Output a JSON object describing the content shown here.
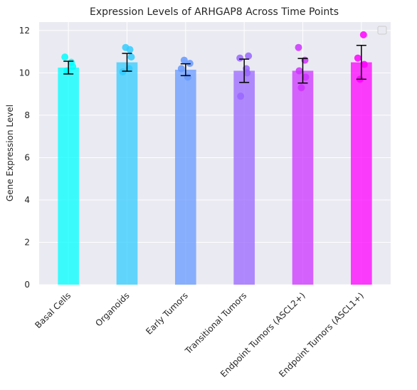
{
  "chart_data": {
    "type": "bar",
    "title": "Expression Levels of ARHGAP8 Across Time Points",
    "xlabel": "",
    "ylabel": "Gene Expression Level",
    "ylim": [
      0,
      12.4
    ],
    "yticks": [
      "0",
      "2",
      "4",
      "6",
      "8",
      "10",
      "12"
    ],
    "grid": true,
    "legend": "top-right (empty)",
    "categories": [
      "Basal Cells",
      "Organoids",
      "Early Tumors",
      "Transitional Tumors",
      "Endpoint Tumors (ASCL2+)",
      "Endpoint Tumors (ASCL1+)"
    ],
    "values": [
      10.25,
      10.5,
      10.15,
      10.1,
      10.1,
      10.5
    ],
    "errors": [
      0.3,
      0.42,
      0.28,
      0.55,
      0.58,
      0.8
    ],
    "points": [
      [
        10.75,
        10.5,
        10.1,
        10.3
      ],
      [
        11.1,
        11.2,
        10.75,
        10.05,
        10.2
      ],
      [
        10.6,
        10.45,
        10.2,
        9.8
      ],
      [
        10.8,
        10.7,
        10.2,
        8.9,
        10.0
      ],
      [
        11.2,
        10.6,
        10.1,
        9.8,
        9.3
      ],
      [
        11.8,
        10.7,
        10.4,
        9.7
      ]
    ],
    "colors": [
      "#00ffff",
      "#33ccff",
      "#6699ff",
      "#9966ff",
      "#cc33ff",
      "#ff00ff"
    ]
  }
}
